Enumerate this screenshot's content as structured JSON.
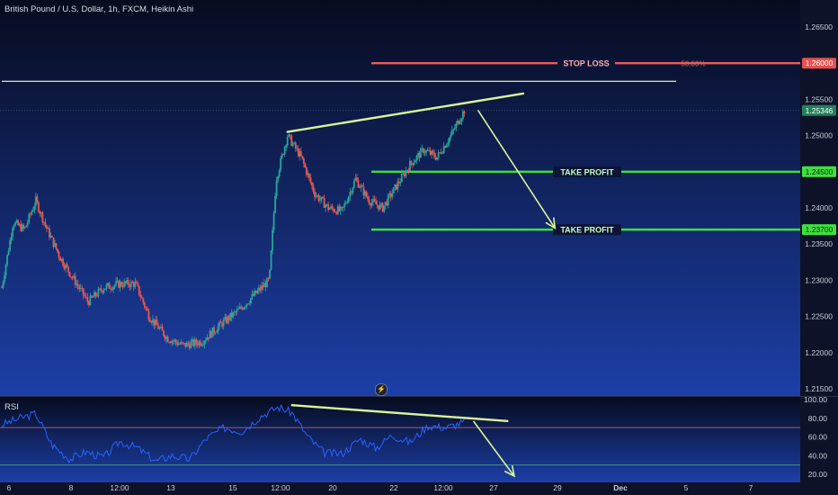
{
  "header": {
    "symbol_title": "British Pound / U.S. Dollar, 1h, FXCM, Heikin Ashi"
  },
  "rsi_panel": {
    "label": "RSI",
    "axis_ticks": [
      "100.00",
      "80.00",
      "60.00",
      "40.00",
      "20.00"
    ]
  },
  "price_axis": {
    "ticks": [
      "1.26500",
      "1.26000",
      "1.25500",
      "1.25000",
      "1.24500",
      "1.24000",
      "1.23500",
      "1.23000",
      "1.22500",
      "1.22000",
      "1.21500"
    ]
  },
  "time_axis": {
    "ticks": [
      "6",
      "8",
      "12:00",
      "13",
      "15",
      "12:00",
      "20",
      "22",
      "12:00",
      "27",
      "29",
      "Dec",
      "5",
      "7"
    ]
  },
  "levels": {
    "stop_loss": {
      "label": "STOP LOSS",
      "price": "1.26000",
      "pct": "50.00%",
      "color": "#f05a5a"
    },
    "take_profit_1": {
      "label": "TAKE PROFIT",
      "price": "1.24500",
      "color": "#3ee03e"
    },
    "take_profit_2": {
      "label": "TAKE PROFIT",
      "price": "1.23700",
      "color": "#3ee03e"
    },
    "current": {
      "price": "1.25346",
      "color": "#2e9e70"
    }
  },
  "colors": {
    "candle_up": "#26a69a",
    "candle_down": "#ef5350",
    "trendline": "#d9f59a",
    "rsi_line": "#2962ff",
    "horizontal_line": "#ffffb0"
  },
  "icons": {
    "replay": "lightning-icon"
  },
  "chart_data": {
    "type": "candlestick",
    "series_name": "",
    "ylim": [
      1.215,
      1.266
    ],
    "price_points": [
      {
        "t": 0,
        "p": 1.229
      },
      {
        "t": 0.5,
        "p": 1.238
      },
      {
        "t": 1.0,
        "p": 1.237
      },
      {
        "t": 1.5,
        "p": 1.241
      },
      {
        "t": 2.0,
        "p": 1.237
      },
      {
        "t": 2.6,
        "p": 1.233
      },
      {
        "t": 3.2,
        "p": 1.23
      },
      {
        "t": 3.8,
        "p": 1.227
      },
      {
        "t": 4.5,
        "p": 1.229
      },
      {
        "t": 5.2,
        "p": 1.2295
      },
      {
        "t": 5.9,
        "p": 1.2295
      },
      {
        "t": 6.5,
        "p": 1.225
      },
      {
        "t": 7.3,
        "p": 1.222
      },
      {
        "t": 8.0,
        "p": 1.221
      },
      {
        "t": 8.8,
        "p": 1.2215
      },
      {
        "t": 9.7,
        "p": 1.224
      },
      {
        "t": 10.5,
        "p": 1.226
      },
      {
        "t": 11.3,
        "p": 1.2285
      },
      {
        "t": 11.8,
        "p": 1.23
      },
      {
        "t": 12.1,
        "p": 1.244
      },
      {
        "t": 12.6,
        "p": 1.25
      },
      {
        "t": 13.2,
        "p": 1.247
      },
      {
        "t": 13.8,
        "p": 1.242
      },
      {
        "t": 14.4,
        "p": 1.24
      },
      {
        "t": 15.0,
        "p": 1.2395
      },
      {
        "t": 15.6,
        "p": 1.244
      },
      {
        "t": 16.2,
        "p": 1.241
      },
      {
        "t": 16.8,
        "p": 1.24
      },
      {
        "t": 17.4,
        "p": 1.243
      },
      {
        "t": 18.0,
        "p": 1.246
      },
      {
        "t": 18.6,
        "p": 1.248
      },
      {
        "t": 19.2,
        "p": 1.247
      },
      {
        "t": 19.8,
        "p": 1.25
      },
      {
        "t": 20.4,
        "p": 1.2535
      }
    ],
    "rsi_points": [
      {
        "t": 0,
        "v": 73
      },
      {
        "t": 0.8,
        "v": 80
      },
      {
        "t": 1.5,
        "v": 85
      },
      {
        "t": 2.2,
        "v": 52
      },
      {
        "t": 3.0,
        "v": 36
      },
      {
        "t": 3.7,
        "v": 44
      },
      {
        "t": 4.5,
        "v": 38
      },
      {
        "t": 5.2,
        "v": 55
      },
      {
        "t": 6.0,
        "v": 48
      },
      {
        "t": 6.8,
        "v": 34
      },
      {
        "t": 7.5,
        "v": 40
      },
      {
        "t": 8.3,
        "v": 36
      },
      {
        "t": 9.0,
        "v": 58
      },
      {
        "t": 9.8,
        "v": 70
      },
      {
        "t": 10.6,
        "v": 66
      },
      {
        "t": 11.4,
        "v": 82
      },
      {
        "t": 12.2,
        "v": 92
      },
      {
        "t": 12.8,
        "v": 86
      },
      {
        "t": 13.5,
        "v": 60
      },
      {
        "t": 14.2,
        "v": 43
      },
      {
        "t": 15.0,
        "v": 42
      },
      {
        "t": 15.8,
        "v": 58
      },
      {
        "t": 16.5,
        "v": 48
      },
      {
        "t": 17.2,
        "v": 62
      },
      {
        "t": 18.0,
        "v": 54
      },
      {
        "t": 18.8,
        "v": 72
      },
      {
        "t": 19.6,
        "v": 70
      },
      {
        "t": 20.4,
        "v": 76
      }
    ],
    "rsi_ylim": [
      15,
      100
    ],
    "rsi_bands": [
      70,
      30
    ],
    "trendlines": [
      {
        "panel": "price",
        "from": {
          "t": 12.6,
          "p": 1.2505
        },
        "to": {
          "t": 23.0,
          "p": 1.2558
        }
      },
      {
        "panel": "rsi",
        "from": {
          "t": 12.8,
          "v": 94
        },
        "to": {
          "t": 22.3,
          "v": 77
        }
      }
    ],
    "arrows": [
      {
        "panel": "price",
        "from": {
          "t": 21.0,
          "p": 1.2535
        },
        "to": {
          "t": 24.4,
          "p": 1.2372
        }
      },
      {
        "panel": "rsi",
        "from": {
          "t": 20.8,
          "v": 77
        },
        "to": {
          "t": 22.6,
          "v": 18
        }
      }
    ],
    "horizontal_lines": [
      {
        "panel": "price",
        "p": 1.26,
        "start_t": 0,
        "end_t": 36
      }
    ],
    "grid": false,
    "legend": "none"
  }
}
